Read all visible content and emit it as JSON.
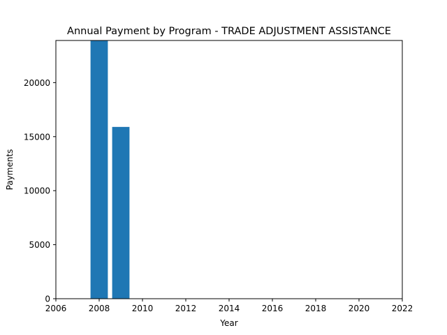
{
  "chart_data": {
    "type": "bar",
    "title": "Annual Payment by Program - TRADE ADJUSTMENT ASSISTANCE",
    "xlabel": "Year",
    "ylabel": "Payments",
    "x": [
      2008,
      2009
    ],
    "values": [
      23900,
      15900
    ],
    "bar_color": "#1f77b4",
    "xlim": [
      2006,
      2022
    ],
    "ylim": [
      0,
      23900
    ],
    "xticks": [
      "2006",
      "2008",
      "2010",
      "2012",
      "2014",
      "2016",
      "2018",
      "2020",
      "2022"
    ],
    "yticks": [
      "0",
      "5000",
      "10000",
      "15000",
      "20000"
    ],
    "grid": false,
    "legend": "none"
  }
}
